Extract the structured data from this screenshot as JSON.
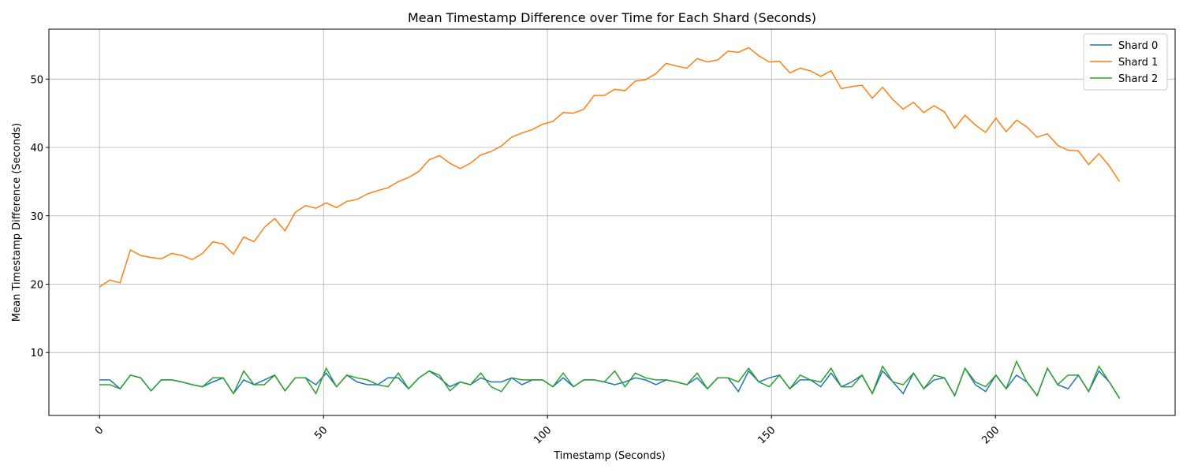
{
  "chart_data": {
    "type": "line",
    "title": "Mean Timestamp Difference over Time for Each Shard (Seconds)",
    "x_label": "Timestamp (Seconds)",
    "y_label": "Mean Timestamp Difference (Seconds)",
    "x": [
      0,
      2.3,
      4.6,
      6.9,
      9.2,
      11.5,
      13.8,
      16.1,
      18.4,
      20.7,
      23,
      25.3,
      27.6,
      29.9,
      32.2,
      34.5,
      36.8,
      39.1,
      41.4,
      43.7,
      46,
      48.3,
      50.6,
      52.9,
      55.2,
      57.5,
      59.8,
      62.1,
      64.4,
      66.7,
      69,
      71.3,
      73.6,
      75.9,
      78.2,
      80.5,
      82.8,
      85.1,
      87.4,
      89.7,
      92,
      94.3,
      96.6,
      98.9,
      101.2,
      103.5,
      105.8,
      108.1,
      110.4,
      112.7,
      115,
      117.3,
      119.6,
      121.9,
      124.2,
      126.5,
      128.8,
      131.1,
      133.4,
      135.7,
      138,
      140.3,
      142.6,
      144.9,
      147.2,
      149.5,
      151.8,
      154.1,
      156.4,
      158.7,
      161,
      163.3,
      165.6,
      167.9,
      170.2,
      172.5,
      174.8,
      177.1,
      179.4,
      181.7,
      184,
      186.3,
      188.6,
      190.9,
      193.2,
      195.5,
      197.8,
      200.1,
      202.4,
      204.7,
      207,
      209.3,
      211.6,
      213.9,
      216.2,
      218.5,
      220.8,
      223.1,
      225.4,
      227.7
    ],
    "series": [
      {
        "name": "Shard 0",
        "color": "#1f77b4",
        "values": [
          6.0,
          6.0,
          4.7,
          6.7,
          6.3,
          4.4,
          6.0,
          6.0,
          5.7,
          5.3,
          5.0,
          5.7,
          6.3,
          4.0,
          6.0,
          5.3,
          6.0,
          6.7,
          4.4,
          6.3,
          6.3,
          5.3,
          7.0,
          5.0,
          6.7,
          5.7,
          5.3,
          5.3,
          6.3,
          6.3,
          4.7,
          6.3,
          7.3,
          6.3,
          5.0,
          5.7,
          5.3,
          6.3,
          5.7,
          5.7,
          6.3,
          5.3,
          6.0,
          6.0,
          5.0,
          6.3,
          5.0,
          6.0,
          6.0,
          5.7,
          5.3,
          5.7,
          6.3,
          6.0,
          5.3,
          6.0,
          5.7,
          5.3,
          6.3,
          4.7,
          6.3,
          6.3,
          4.3,
          7.3,
          5.7,
          6.3,
          6.7,
          4.7,
          6.0,
          6.0,
          5.0,
          7.0,
          5.0,
          5.7,
          6.7,
          4.0,
          7.3,
          5.7,
          4.0,
          7.0,
          4.7,
          6.0,
          6.3,
          3.7,
          7.7,
          5.3,
          4.3,
          6.7,
          4.7,
          6.7,
          5.7,
          3.7,
          7.7,
          5.3,
          4.7,
          6.7,
          4.3,
          7.3,
          5.7,
          3.3
        ]
      },
      {
        "name": "Shard 1",
        "color": "#ff7f0e",
        "values": [
          19.6,
          20.6,
          20.2,
          25.0,
          24.2,
          23.9,
          23.7,
          24.5,
          24.2,
          23.6,
          24.5,
          26.2,
          25.9,
          24.4,
          26.9,
          26.2,
          28.3,
          29.6,
          27.8,
          30.5,
          31.5,
          31.1,
          31.9,
          31.2,
          32.1,
          32.4,
          33.2,
          33.7,
          34.1,
          35.0,
          35.6,
          36.5,
          38.2,
          38.8,
          37.7,
          36.9,
          37.7,
          38.9,
          39.4,
          40.2,
          41.5,
          42.1,
          42.6,
          43.4,
          43.8,
          45.1,
          45.0,
          45.6,
          47.6,
          47.6,
          48.5,
          48.3,
          49.7,
          49.9,
          50.8,
          52.3,
          51.9,
          51.6,
          53.0,
          52.5,
          52.8,
          54.1,
          53.9,
          54.6,
          53.4,
          52.5,
          52.6,
          50.9,
          51.6,
          51.2,
          50.4,
          51.2,
          48.6,
          48.9,
          49.1,
          47.2,
          48.8,
          47.0,
          45.6,
          46.6,
          45.1,
          46.1,
          45.2,
          42.8,
          44.7,
          43.3,
          42.2,
          44.3,
          42.3,
          44.0,
          43.0,
          41.5,
          42.0,
          40.3,
          39.6,
          39.5,
          37.5,
          39.1,
          37.3,
          35.0
        ]
      },
      {
        "name": "Shard 2",
        "color": "#2ca02c",
        "values": [
          5.3,
          5.3,
          4.7,
          6.7,
          6.3,
          4.4,
          6.0,
          6.0,
          5.7,
          5.3,
          5.0,
          6.3,
          6.3,
          4.0,
          7.3,
          5.3,
          5.3,
          6.7,
          4.4,
          6.3,
          6.3,
          4.0,
          7.7,
          5.0,
          6.7,
          6.3,
          6.0,
          5.3,
          5.0,
          7.0,
          4.7,
          6.3,
          7.3,
          6.7,
          4.4,
          5.7,
          5.3,
          7.0,
          5.0,
          4.3,
          6.3,
          6.0,
          6.0,
          6.0,
          5.0,
          7.0,
          5.0,
          6.0,
          6.0,
          5.7,
          7.3,
          5.0,
          7.0,
          6.3,
          6.0,
          6.0,
          5.7,
          5.3,
          7.0,
          4.7,
          6.3,
          6.3,
          5.7,
          7.7,
          5.7,
          5.0,
          6.7,
          4.7,
          6.7,
          6.0,
          5.7,
          7.7,
          5.0,
          5.0,
          6.7,
          4.0,
          8.0,
          5.7,
          5.3,
          7.0,
          4.7,
          6.7,
          6.3,
          3.7,
          7.7,
          5.7,
          5.0,
          6.7,
          4.7,
          8.7,
          5.7,
          3.7,
          7.7,
          5.3,
          6.7,
          6.7,
          4.3,
          8.0,
          5.7,
          3.3
        ]
      }
    ],
    "xlim": [
      -11.3,
      240.1
    ],
    "ylim": [
      0.8,
      57.3
    ],
    "xticks": [
      0,
      50,
      100,
      150,
      200
    ],
    "yticks": [
      10,
      20,
      30,
      40,
      50
    ],
    "grid": true,
    "legend": "upper right"
  }
}
